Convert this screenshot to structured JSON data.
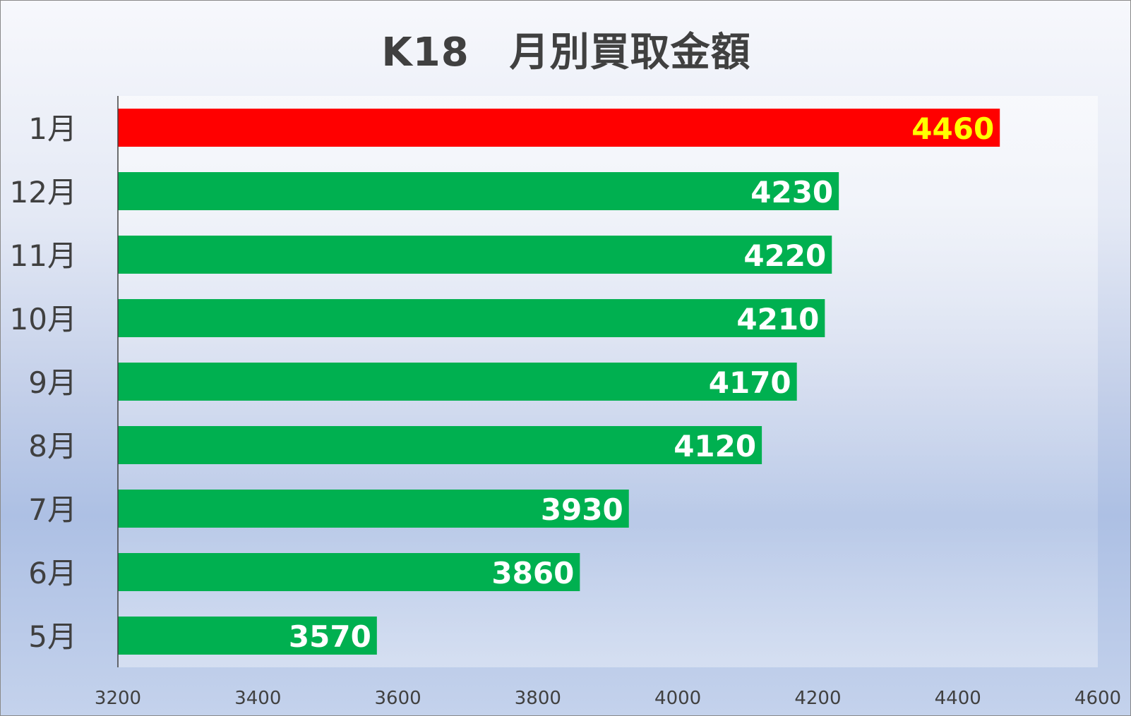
{
  "chart_data": {
    "type": "bar",
    "orientation": "horizontal",
    "title": "K18　月別買取金額",
    "xlabel": "",
    "ylabel": "",
    "categories": [
      "1月",
      "12月",
      "11月",
      "10月",
      "9月",
      "8月",
      "7月",
      "6月",
      "5月"
    ],
    "values": [
      4460,
      4230,
      4220,
      4210,
      4170,
      4120,
      3930,
      3860,
      3570
    ],
    "xlim": [
      3200,
      4600
    ],
    "x_ticks": [
      "3200",
      "3400",
      "3600",
      "3800",
      "4000",
      "4200",
      "4400",
      "4600"
    ],
    "grid": false,
    "legend": "none",
    "data_labels": [
      "4460",
      "4230",
      "4220",
      "4210",
      "4170",
      "4120",
      "3930",
      "3860",
      "3570"
    ],
    "highlight_index": 0
  },
  "colors": {
    "bar": "#00b050",
    "highlight_bar": "#ff0000",
    "label": "#ffffff",
    "highlight_label": "#ffff00",
    "axis_text": "#404040",
    "axis_line": "#404040"
  }
}
